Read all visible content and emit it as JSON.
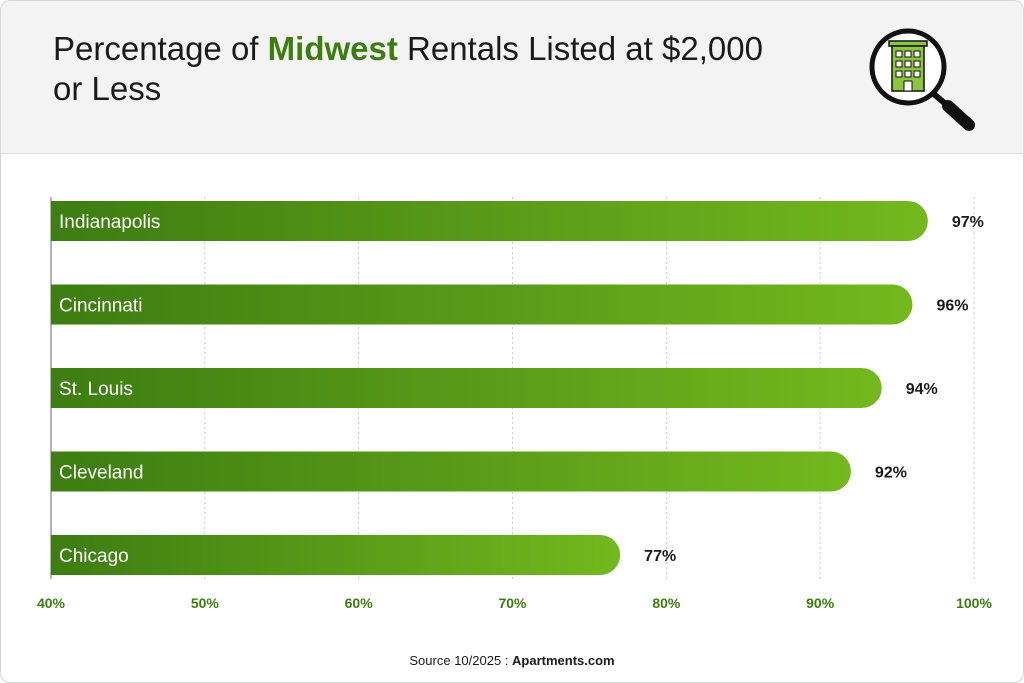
{
  "title": {
    "prefix": "Percentage of ",
    "highlight": "Midwest",
    "suffix": " Rentals Listed at $2,000 or Less"
  },
  "logo_icon": "building-magnifier-icon",
  "colors": {
    "bar_start": "#3d7d12",
    "bar_end": "#74b81e",
    "accent": "#3d7d12"
  },
  "chart_data": {
    "type": "bar",
    "orientation": "horizontal",
    "categories": [
      "Indianapolis",
      "Cincinnati",
      "St. Louis",
      "Cleveland",
      "Chicago"
    ],
    "values": [
      97,
      96,
      94,
      92,
      77
    ],
    "value_labels": [
      "97%",
      "96%",
      "94%",
      "92%",
      "77%"
    ],
    "xlim": [
      40,
      100
    ],
    "x_ticks": [
      40,
      50,
      60,
      70,
      80,
      90,
      100
    ],
    "x_tick_labels": [
      "40%",
      "50%",
      "60%",
      "70%",
      "80%",
      "90%",
      "100%"
    ],
    "grid": "vertical dotted",
    "xlabel": "",
    "ylabel": ""
  },
  "source": {
    "prefix": "Source 10/2025 : ",
    "brand": "Apartments.com"
  }
}
